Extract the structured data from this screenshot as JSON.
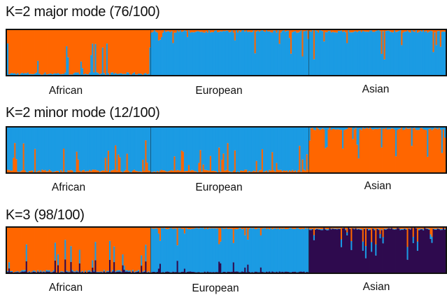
{
  "chart_data": [
    {
      "type": "bar",
      "subtype": "stacked-admixture",
      "title": "K=2 major mode (76/100)",
      "populations": [
        {
          "label": "African",
          "count": 100
        },
        {
          "label": "European",
          "count": 110
        },
        {
          "label": "Asian",
          "count": 95
        }
      ],
      "series": [
        {
          "color": "#ff6600",
          "mean_proportion_by_population": [
            0.96,
            0.02,
            0.02
          ]
        },
        {
          "color": "#1b9be3",
          "mean_proportion_by_population": [
            0.04,
            0.98,
            0.98
          ]
        }
      ],
      "ylim": [
        0,
        1
      ]
    },
    {
      "type": "bar",
      "subtype": "stacked-admixture",
      "title": "K=2 minor mode (12/100)",
      "populations": [
        {
          "label": "African",
          "count": 100
        },
        {
          "label": "European",
          "count": 110
        },
        {
          "label": "Asian",
          "count": 95
        }
      ],
      "series": [
        {
          "color": "#1b9be3",
          "mean_proportion_by_population": [
            0.97,
            0.96,
            0.02
          ]
        },
        {
          "color": "#ff6600",
          "mean_proportion_by_population": [
            0.03,
            0.04,
            0.98
          ]
        }
      ],
      "ylim": [
        0,
        1
      ]
    },
    {
      "type": "bar",
      "subtype": "stacked-admixture",
      "title": "K=3 (98/100)",
      "populations": [
        {
          "label": "African",
          "count": 100
        },
        {
          "label": "European",
          "count": 110
        },
        {
          "label": "Asian",
          "count": 95
        }
      ],
      "series": [
        {
          "color": "#ff6600",
          "mean_proportion_by_population": [
            0.95,
            0.01,
            0.01
          ]
        },
        {
          "color": "#1b9be3",
          "mean_proportion_by_population": [
            0.03,
            0.96,
            0.02
          ]
        },
        {
          "color": "#2e0a4e",
          "mean_proportion_by_population": [
            0.02,
            0.03,
            0.97
          ]
        }
      ],
      "ylim": [
        0,
        1
      ]
    }
  ]
}
